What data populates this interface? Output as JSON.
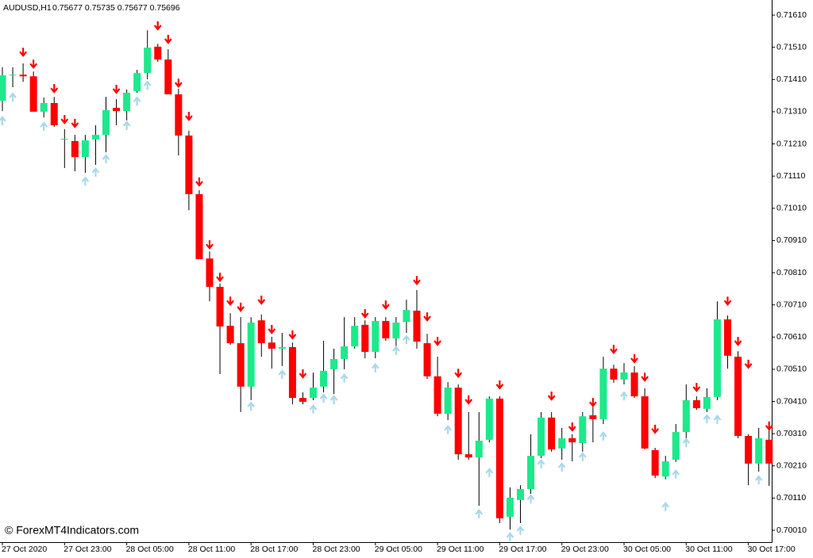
{
  "chart_data": {
    "type": "candlestick",
    "title": "AUDUSD,H1",
    "header_values": "0.75677 0.75735 0.75677 0.75696",
    "watermark": "© ForexMT4Indicators.com",
    "categories": [
      "27 Oct 2020",
      null,
      null,
      null,
      null,
      null,
      "27 Oct 23:00",
      null,
      null,
      null,
      null,
      null,
      "28 Oct 05:00",
      null,
      null,
      null,
      null,
      null,
      "28 Oct 11:00",
      null,
      null,
      null,
      null,
      null,
      "28 Oct 17:00",
      null,
      null,
      null,
      null,
      null,
      "28 Oct 23:00",
      null,
      null,
      null,
      null,
      null,
      "29 Oct 05:00",
      null,
      null,
      null,
      null,
      null,
      "29 Oct 11:00",
      null,
      null,
      null,
      null,
      null,
      "29 Oct 17:00",
      null,
      null,
      null,
      null,
      null,
      "29 Oct 23:00",
      null,
      null,
      null,
      null,
      null,
      "30 Oct 05:00",
      null,
      null,
      null,
      null,
      null,
      "30 Oct 11:00",
      null,
      null,
      null,
      null,
      null,
      "30 Oct 17:00",
      null,
      null
    ],
    "candles": {
      "up_color": "#1de98b",
      "down_color": "#ff0000",
      "open": [
        0.71344,
        0.71423,
        0.71425,
        0.7142,
        0.7131,
        0.71337,
        0.71224,
        0.71219,
        0.71169,
        0.71224,
        0.71238,
        0.71322,
        0.71312,
        0.71374,
        0.7143,
        0.71512,
        0.71472,
        0.71364,
        0.71236,
        0.71054,
        0.70854,
        0.70766,
        0.70645,
        0.70591,
        0.70456,
        0.70662,
        0.70593,
        0.70574,
        0.70579,
        0.70421,
        0.70421,
        0.70456,
        0.7051,
        0.70542,
        0.70581,
        0.70648,
        0.70564,
        0.7066,
        0.70606,
        0.70657,
        0.70692,
        0.70591,
        0.70488,
        0.70372,
        0.70453,
        0.70246,
        0.70236,
        0.70291,
        0.70419,
        0.70052,
        0.70104,
        0.70138,
        0.70241,
        0.7036,
        0.70264,
        0.70296,
        0.70281,
        0.70367,
        0.70355,
        0.70512,
        0.70478,
        0.705,
        0.70426,
        0.70259,
        0.70177,
        0.70229,
        0.70315,
        0.70414,
        0.70387,
        0.70424,
        0.70665,
        0.70549,
        0.70303,
        0.70217,
        0.70291
      ],
      "high": [
        0.71448,
        0.71448,
        0.7146,
        0.71435,
        0.71354,
        0.71356,
        0.71256,
        0.71238,
        0.71238,
        0.71268,
        0.71356,
        0.71349,
        0.71379,
        0.7144,
        0.71563,
        0.71521,
        0.71504,
        0.71381,
        0.71251,
        0.71066,
        0.70876,
        0.70776,
        0.70684,
        0.70672,
        0.70672,
        0.7068,
        0.70611,
        0.70623,
        0.70593,
        0.70438,
        0.705,
        0.70598,
        0.70574,
        0.70672,
        0.70672,
        0.70662,
        0.70672,
        0.70672,
        0.70672,
        0.70726,
        0.70756,
        0.7062,
        0.70549,
        0.7047,
        0.70463,
        0.70377,
        0.70377,
        0.70426,
        0.70426,
        0.70143,
        0.7015,
        0.70308,
        0.70377,
        0.70377,
        0.70328,
        0.70308,
        0.70377,
        0.70414,
        0.70549,
        0.70524,
        0.70529,
        0.7052,
        0.70451,
        0.70266,
        0.70241,
        0.7034,
        0.70463,
        0.70426,
        0.70451,
        0.70721,
        0.70677,
        0.70566,
        0.70308,
        0.70328,
        0.70328
      ],
      "low": [
        0.71312,
        0.71386,
        0.71403,
        0.7131,
        0.71292,
        0.71263,
        0.71135,
        0.71125,
        0.7112,
        0.71145,
        0.71184,
        0.71268,
        0.71283,
        0.71369,
        0.71411,
        0.71465,
        0.71364,
        0.71174,
        0.71004,
        0.70852,
        0.70721,
        0.70495,
        0.70586,
        0.70377,
        0.70414,
        0.70549,
        0.70512,
        0.7052,
        0.70401,
        0.70401,
        0.70414,
        0.70438,
        0.70433,
        0.7051,
        0.70574,
        0.70544,
        0.70544,
        0.70598,
        0.70581,
        0.70623,
        0.70574,
        0.7048,
        0.70364,
        0.70352,
        0.70229,
        0.70229,
        0.70086,
        0.70283,
        0.70032,
        0.70012,
        0.70032,
        0.70123,
        0.70234,
        0.70254,
        0.70229,
        0.70224,
        0.70254,
        0.70283,
        0.7034,
        0.70468,
        0.70463,
        0.70421,
        0.70261,
        0.70172,
        0.70168,
        0.70222,
        0.70296,
        0.70384,
        0.70377,
        0.70414,
        0.70512,
        0.70296,
        0.7015,
        0.70192,
        0.70148
      ],
      "close": [
        0.71423,
        0.71425,
        0.7142,
        0.7131,
        0.71337,
        0.71268,
        0.71226,
        0.71169,
        0.71221,
        0.71238,
        0.71315,
        0.71312,
        0.71369,
        0.7143,
        0.71509,
        0.71472,
        0.71364,
        0.71236,
        0.71054,
        0.70852,
        0.70766,
        0.70643,
        0.70591,
        0.70456,
        0.70655,
        0.70591,
        0.70574,
        0.70579,
        0.70421,
        0.70409,
        0.70453,
        0.70505,
        0.70542,
        0.70581,
        0.70645,
        0.70564,
        0.7066,
        0.70606,
        0.70655,
        0.70694,
        0.70596,
        0.70488,
        0.70372,
        0.70453,
        0.70246,
        0.70236,
        0.70288,
        0.70419,
        0.70047,
        0.70111,
        0.70138,
        0.70241,
        0.7036,
        0.70261,
        0.70296,
        0.70283,
        0.70364,
        0.70355,
        0.70512,
        0.70478,
        0.705,
        0.70426,
        0.70264,
        0.7018,
        0.70224,
        0.70315,
        0.70414,
        0.70389,
        0.70424,
        0.70665,
        0.70552,
        0.70303,
        0.70217,
        0.70296,
        0.70217
      ]
    },
    "signals": {
      "down_color": "#ff0000",
      "up_color": "#a8d8ea",
      "down": [
        null,
        null,
        0.71489,
        0.71452,
        null,
        0.71376,
        0.7128,
        0.71268,
        null,
        null,
        null,
        0.71374,
        null,
        null,
        null,
        0.71571,
        0.71529,
        0.71393,
        0.7129,
        0.71086,
        0.70891,
        0.7079,
        0.70716,
        0.70697,
        null,
        0.70719,
        0.70628,
        null,
        0.70611,
        0.7049,
        null,
        null,
        null,
        null,
        null,
        0.70677,
        null,
        0.70704,
        null,
        null,
        0.7078,
        0.70667,
        0.70591,
        null,
        0.70492,
        0.70409,
        null,
        null,
        0.70456,
        null,
        null,
        null,
        null,
        0.70421,
        null,
        0.70325,
        null,
        0.70401,
        null,
        0.70566,
        null,
        0.70537,
        0.7048,
        0.70318,
        null,
        null,
        null,
        0.70448,
        null,
        null,
        0.70716,
        0.70591,
        0.7052,
        null,
        0.70328
      ],
      "up": [
        0.71288,
        0.71361,
        null,
        null,
        0.7127,
        null,
        null,
        null,
        0.711,
        0.71128,
        0.71169,
        null,
        0.71273,
        0.71349,
        0.71398,
        null,
        null,
        null,
        null,
        null,
        null,
        null,
        null,
        null,
        0.70401,
        null,
        null,
        0.705,
        null,
        null,
        0.70392,
        0.70426,
        0.70421,
        0.70488,
        null,
        null,
        0.7052,
        null,
        0.70574,
        0.70608,
        null,
        null,
        null,
        0.70328,
        null,
        null,
        0.70067,
        0.70195,
        null,
        0.69995,
        0.70015,
        0.70113,
        0.70222,
        null,
        0.70212,
        null,
        0.70244,
        null,
        0.70308,
        null,
        0.70433,
        null,
        null,
        null,
        0.70089,
        0.7019,
        0.70288,
        null,
        0.70362,
        0.7036,
        null,
        null,
        null,
        0.70172,
        null
      ]
    },
    "ylim": [
      0.69973,
      0.71657
    ],
    "yticks": [
      {
        "value": 0.7161,
        "label": "0.71610"
      },
      {
        "value": 0.7151,
        "label": "0.71510"
      },
      {
        "value": 0.7141,
        "label": "0.71410"
      },
      {
        "value": 0.7131,
        "label": "0.71310"
      },
      {
        "value": 0.7121,
        "label": "0.71210"
      },
      {
        "value": 0.7111,
        "label": "0.71110"
      },
      {
        "value": 0.7101,
        "label": "0.71010"
      },
      {
        "value": 0.7091,
        "label": "0.70910"
      },
      {
        "value": 0.7081,
        "label": "0.70810"
      },
      {
        "value": 0.7071,
        "label": "0.70710"
      },
      {
        "value": 0.7061,
        "label": "0.70610"
      },
      {
        "value": 0.7051,
        "label": "0.70510"
      },
      {
        "value": 0.7041,
        "label": "0.70410"
      },
      {
        "value": 0.7031,
        "label": "0.70310"
      },
      {
        "value": 0.7021,
        "label": "0.70210"
      },
      {
        "value": 0.7011,
        "label": "0.70110"
      },
      {
        "value": 0.7001,
        "label": "0.70010"
      }
    ],
    "grid": false
  }
}
